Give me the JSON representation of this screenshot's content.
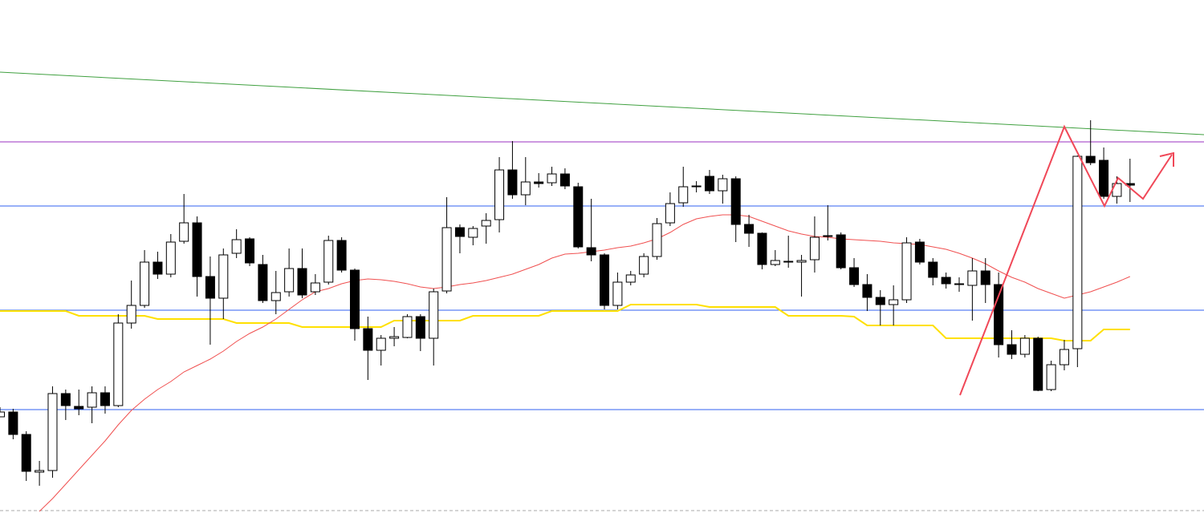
{
  "chart_data": {
    "type": "candlestick",
    "ylim": [
      0,
      640
    ],
    "up_color": "#ffffff",
    "down_color": "#000000",
    "wick_color": "#000000",
    "open": [
      120,
      126,
      98,
      51,
      53,
      149,
      133,
      132,
      150,
      134,
      237,
      259,
      313,
      298,
      339,
      362,
      295,
      268,
      324,
      342,
      310,
      265,
      276,
      305,
      276,
      288,
      340,
      303,
      230,
      203,
      218,
      219,
      245,
      218,
      277,
      356,
      344,
      358,
      366,
      428,
      397,
      413,
      412,
      423,
      407,
      331,
      322,
      259,
      288,
      298,
      320,
      362,
      387,
      407,
      420,
      402,
      417,
      360,
      349,
      310,
      314,
      313,
      316,
      346,
      347,
      306,
      285,
      269,
      260,
      266,
      338,
      313,
      294,
      286,
      284,
      302,
      285,
      210,
      198,
      218,
      154,
      185,
      205,
      445,
      440,
      395,
      411
    ],
    "high": [
      132,
      130,
      102,
      65,
      158,
      154,
      154,
      158,
      158,
      248,
      290,
      328,
      326,
      348,
      398,
      370,
      320,
      330,
      354,
      344,
      322,
      302,
      330,
      330,
      298,
      346,
      344,
      305,
      245,
      222,
      232,
      248,
      248,
      280,
      394,
      360,
      358,
      374,
      444,
      464,
      444,
      424,
      432,
      430,
      412,
      392,
      324,
      300,
      302,
      324,
      368,
      400,
      432,
      414,
      428,
      422,
      420,
      372,
      350,
      328,
      346,
      322,
      370,
      384,
      350,
      318,
      298,
      278,
      284,
      344,
      342,
      318,
      300,
      294,
      318,
      318,
      300,
      228,
      222,
      220,
      190,
      216,
      446,
      490,
      456,
      420,
      442
    ],
    "low": [
      120,
      92,
      40,
      34,
      44,
      116,
      122,
      112,
      124,
      132,
      230,
      256,
      292,
      294,
      336,
      270,
      210,
      242,
      318,
      308,
      262,
      248,
      270,
      268,
      272,
      285,
      300,
      215,
      166,
      184,
      208,
      218,
      202,
      184,
      274,
      324,
      334,
      336,
      350,
      392,
      384,
      406,
      408,
      404,
      330,
      314,
      254,
      254,
      284,
      294,
      316,
      358,
      382,
      400,
      398,
      386,
      338,
      332,
      304,
      308,
      306,
      270,
      300,
      340,
      304,
      282,
      252,
      234,
      234,
      262,
      310,
      284,
      280,
      276,
      240,
      262,
      194,
      192,
      194,
      152,
      152,
      178,
      182,
      434,
      392,
      386,
      388
    ],
    "close": [
      126,
      98,
      52,
      53,
      149,
      134,
      130,
      150,
      134,
      237,
      259,
      313,
      298,
      338,
      362,
      295,
      268,
      322,
      341,
      312,
      265,
      275,
      305,
      272,
      287,
      340,
      303,
      230,
      203,
      218,
      220,
      245,
      218,
      276,
      356,
      345,
      355,
      365,
      428,
      397,
      413,
      411,
      423,
      408,
      332,
      322,
      259,
      288,
      297,
      320,
      361,
      386,
      407,
      408,
      402,
      417,
      360,
      349,
      310,
      315,
      313,
      315,
      344,
      345,
      306,
      285,
      269,
      260,
      266,
      337,
      313,
      294,
      286,
      285,
      302,
      285,
      210,
      198,
      218,
      153,
      185,
      204,
      445,
      437,
      395,
      411,
      409
    ],
    "ma": {
      "color": "#f05050",
      "values": [
        null,
        null,
        null,
        2,
        18,
        36,
        54,
        72,
        90,
        110,
        128,
        142,
        154,
        164,
        176,
        184,
        192,
        202,
        214,
        224,
        232,
        242,
        254,
        266,
        276,
        280,
        286,
        290,
        292,
        291,
        289,
        286,
        282,
        280,
        282,
        285,
        287,
        290,
        294,
        298,
        304,
        310,
        318,
        323,
        324,
        326,
        328,
        331,
        333,
        337,
        342,
        350,
        360,
        367,
        370,
        372,
        372,
        370,
        364,
        358,
        352,
        348,
        345,
        344,
        342,
        341,
        340,
        339,
        337,
        336,
        335,
        332,
        329,
        324,
        318,
        311,
        302,
        294,
        288,
        280,
        274,
        268,
        272,
        276,
        282,
        288,
        295
      ]
    },
    "baseline": {
      "color": "#ffe000",
      "values": [
        252,
        252,
        252,
        252,
        252,
        252,
        246,
        246,
        246,
        246,
        246,
        246,
        242,
        242,
        242,
        242,
        242,
        242,
        237,
        237,
        237,
        237,
        237,
        232,
        232,
        232,
        232,
        232,
        232,
        232,
        240,
        240,
        240,
        240,
        240,
        240,
        246,
        246,
        246,
        246,
        246,
        246,
        252,
        252,
        252,
        252,
        252,
        252,
        260,
        260,
        260,
        260,
        260,
        260,
        257,
        257,
        257,
        257,
        257,
        257,
        246,
        246,
        246,
        246,
        246,
        245,
        234,
        234,
        234,
        234,
        234,
        234,
        218,
        218,
        218,
        218,
        218,
        218,
        218,
        218,
        218,
        215,
        215,
        215,
        229,
        229,
        229
      ]
    },
    "levels": [
      {
        "color": "#9b30c0",
        "value": 463
      },
      {
        "color": "#3060f0",
        "value": 383
      },
      {
        "color": "#3060f0",
        "value": 253
      },
      {
        "color": "#3060f0",
        "value": 129
      }
    ]
  }
}
